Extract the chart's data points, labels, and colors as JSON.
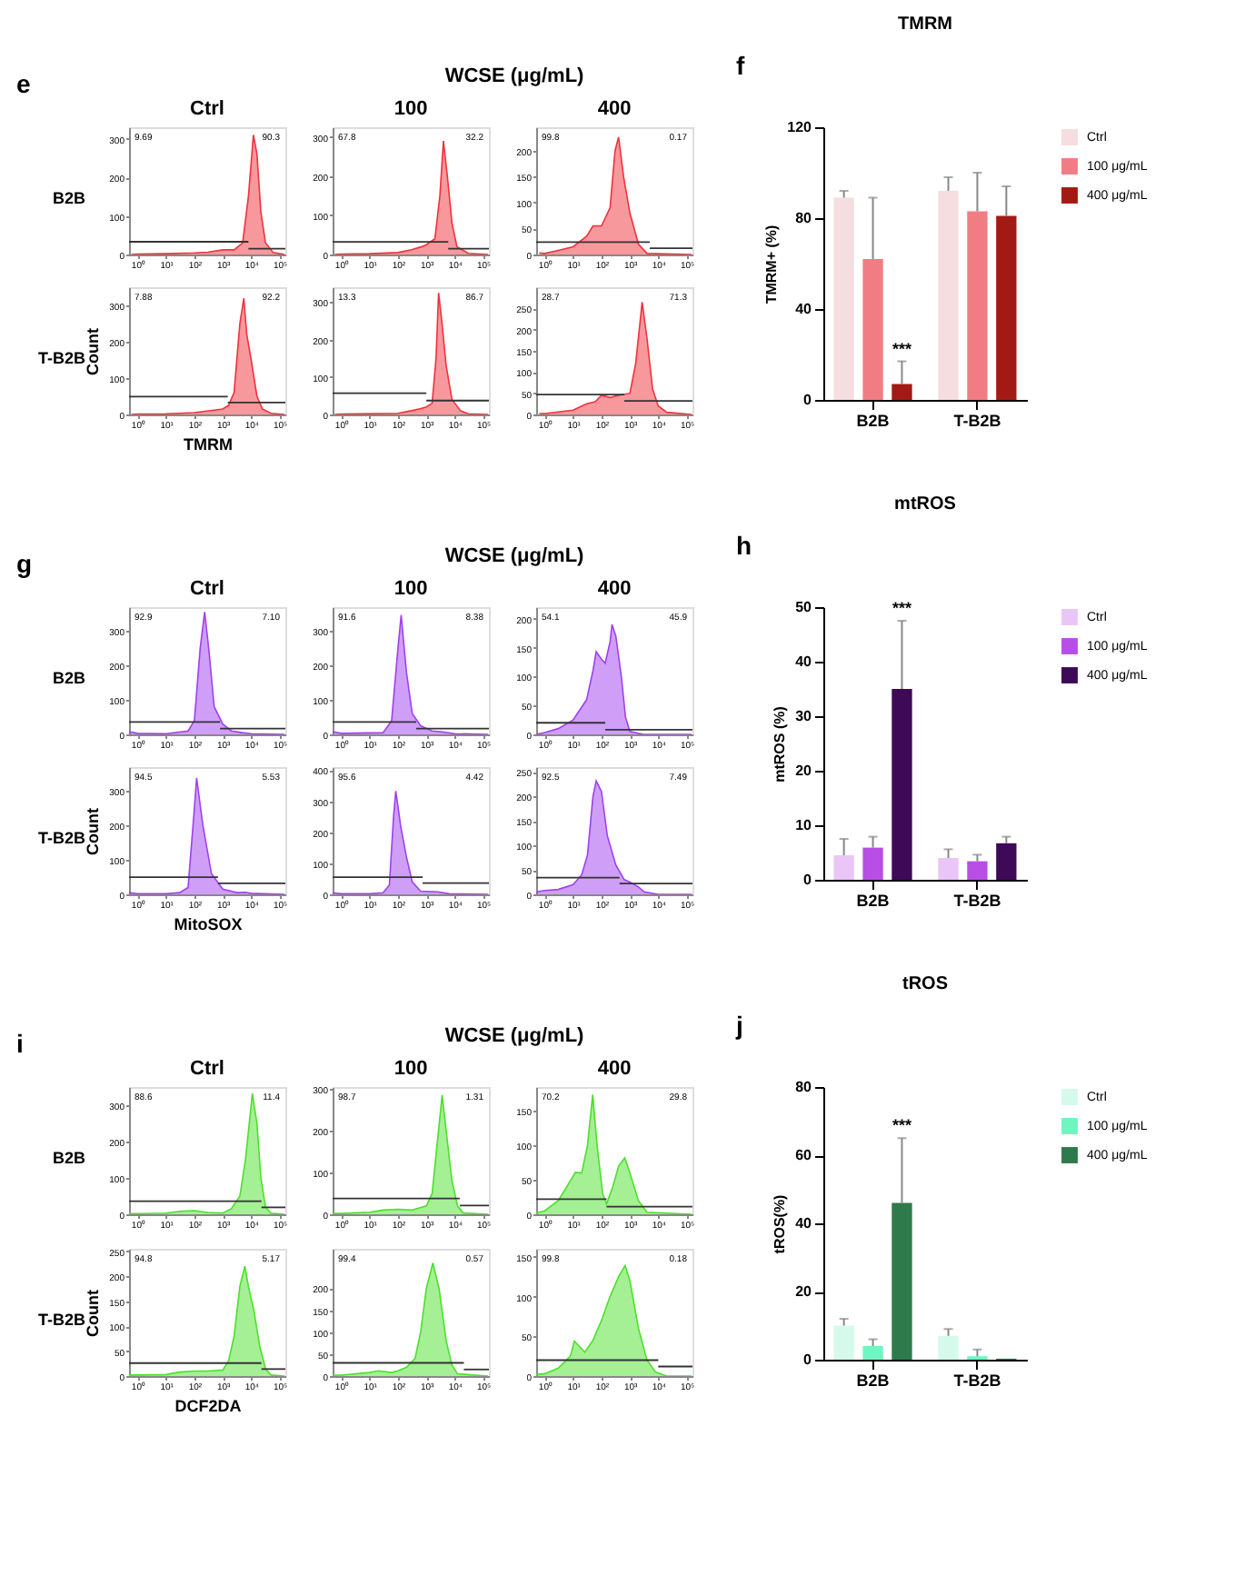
{
  "chart_data": [
    {
      "type": "area",
      "title": "Ctrl",
      "annotations": [
        "9.69",
        "90.3",
        "B2B",
        "e"
      ],
      "log": "x",
      "xlim": [
        0.5,
        160000
      ],
      "xticks": [
        {
          "value": 1,
          "label": "10⁰"
        },
        {
          "value": 10,
          "label": "10¹"
        },
        {
          "value": 100,
          "label": "10²"
        },
        {
          "value": 1000,
          "label": "10³"
        },
        {
          "value": 10000,
          "label": "10⁴"
        },
        {
          "value": 100000,
          "label": "10⁵"
        }
      ],
      "ylim": [
        0,
        330
      ],
      "yticks": [
        0,
        100,
        200,
        300
      ],
      "x": [
        0.6,
        1,
        10,
        100,
        300,
        1000,
        2500,
        5000,
        8000,
        12000,
        16000,
        22000,
        32000,
        60000,
        150000
      ],
      "series": [
        {
          "color": "#f0323c",
          "values": [
            0,
            1,
            2,
            4,
            6,
            12,
            12,
            30,
            150,
            310,
            260,
            110,
            30,
            5,
            0
          ]
        },
        {
          "type": "line",
          "color": "#333333",
          "x": [
            0.5,
            8000
          ],
          "values": [
            33,
            33
          ]
        },
        {
          "type": "line",
          "color": "#333333",
          "x": [
            8000,
            160000
          ],
          "values": [
            15,
            15
          ]
        }
      ]
    },
    {
      "type": "area",
      "title": "100",
      "subtitle": "WCSE (μg/mL)",
      "annotations": [
        "67.8",
        "32.2"
      ],
      "log": "x",
      "xlim": [
        0.5,
        160000
      ],
      "xticks": [
        {
          "value": 1,
          "label": "10⁰"
        },
        {
          "value": 10,
          "label": "10¹"
        },
        {
          "value": 100,
          "label": "10²"
        },
        {
          "value": 1000,
          "label": "10³"
        },
        {
          "value": 10000,
          "label": "10⁴"
        },
        {
          "value": 100000,
          "label": "10⁵"
        }
      ],
      "ylim": [
        0,
        325
      ],
      "yticks": [
        0,
        100,
        200,
        300
      ],
      "x": [
        0.6,
        1,
        10,
        100,
        300,
        700,
        1000,
        2000,
        3000,
        4000,
        5500,
        8000,
        12000,
        30000,
        150000
      ],
      "series": [
        {
          "color": "#f0323c",
          "values": [
            0,
            1,
            2,
            5,
            12,
            20,
            25,
            40,
            150,
            290,
            200,
            80,
            20,
            3,
            0
          ]
        },
        {
          "type": "line",
          "color": "#333333",
          "x": [
            0.5,
            5900
          ],
          "values": [
            32,
            32
          ]
        },
        {
          "type": "line",
          "color": "#333333",
          "x": [
            5900,
            160000
          ],
          "values": [
            15,
            15
          ]
        }
      ]
    },
    {
      "type": "area",
      "title": "400",
      "annotations": [
        "99.8",
        "0.17"
      ],
      "log": "x",
      "xlim": [
        0.5,
        160000
      ],
      "xticks": [
        {
          "value": 1,
          "label": "10⁰"
        },
        {
          "value": 10,
          "label": "10¹"
        },
        {
          "value": 100,
          "label": "10²"
        },
        {
          "value": 1000,
          "label": "10³"
        },
        {
          "value": 10000,
          "label": "10⁴"
        },
        {
          "value": 100000,
          "label": "10⁵"
        }
      ],
      "ylim": [
        0,
        245
      ],
      "yticks": [
        0,
        50,
        100,
        150,
        200
      ],
      "x": [
        0.65,
        1,
        3,
        10,
        30,
        50,
        100,
        200,
        300,
        400,
        600,
        1000,
        2000,
        4000,
        150000
      ],
      "series": [
        {
          "color": "#f0323c",
          "values": [
            3,
            2,
            8,
            15,
            35,
            55,
            55,
            90,
            200,
            226,
            150,
            80,
            20,
            2,
            0
          ]
        },
        {
          "type": "line",
          "color": "#333333",
          "x": [
            0.5,
            5000
          ],
          "values": [
            24,
            24
          ]
        },
        {
          "type": "line",
          "color": "#333333",
          "x": [
            5000,
            160000
          ],
          "values": [
            12,
            12
          ]
        }
      ]
    },
    {
      "type": "area",
      "xlabel": "TMRM",
      "ylabel": "Count",
      "annotations": [
        "7.88",
        "92.2",
        "T-B2B"
      ],
      "log": "x",
      "xlim": [
        0.5,
        160000
      ],
      "xticks": [
        {
          "value": 1,
          "label": "10⁰"
        },
        {
          "value": 10,
          "label": "10¹"
        },
        {
          "value": 100,
          "label": "10²"
        },
        {
          "value": 1000,
          "label": "10³"
        },
        {
          "value": 10000,
          "label": "10⁴"
        },
        {
          "value": 100000,
          "label": "10⁵"
        }
      ],
      "ylim": [
        0,
        350
      ],
      "yticks": [
        0,
        100,
        200,
        300
      ],
      "x": [
        0.6,
        1,
        10,
        100,
        1000,
        1600,
        2500,
        4000,
        5500,
        7000,
        10000,
        16000,
        25000,
        50000,
        150000
      ],
      "series": [
        {
          "color": "#f0323c",
          "values": [
            0,
            1,
            2,
            5,
            15,
            25,
            60,
            250,
            320,
            220,
            150,
            50,
            15,
            3,
            0
          ]
        },
        {
          "type": "line",
          "color": "#333333",
          "x": [
            0.5,
            1500
          ],
          "values": [
            49,
            49
          ]
        },
        {
          "type": "line",
          "color": "#333333",
          "x": [
            1500,
            160000
          ],
          "values": [
            33,
            33
          ]
        }
      ]
    },
    {
      "type": "area",
      "annotations": [
        "13.3",
        "86.7"
      ],
      "log": "x",
      "xlim": [
        0.5,
        160000
      ],
      "xticks": [
        {
          "value": 1,
          "label": "10⁰"
        },
        {
          "value": 10,
          "label": "10¹"
        },
        {
          "value": 100,
          "label": "10²"
        },
        {
          "value": 1000,
          "label": "10³"
        },
        {
          "value": 10000,
          "label": "10⁴"
        },
        {
          "value": 100000,
          "label": "10⁵"
        }
      ],
      "ylim": [
        0,
        340
      ],
      "yticks": [
        0,
        100,
        200,
        300
      ],
      "x": [
        0.6,
        1,
        100,
        300,
        600,
        1000,
        1600,
        2200,
        2700,
        3500,
        5000,
        8000,
        16000,
        30000,
        150000
      ],
      "series": [
        {
          "color": "#f0323c",
          "values": [
            0,
            1,
            3,
            10,
            15,
            20,
            30,
            150,
            325,
            250,
            130,
            40,
            10,
            2,
            0
          ]
        },
        {
          "type": "line",
          "color": "#333333",
          "x": [
            0.5,
            1000
          ],
          "values": [
            57,
            57
          ]
        },
        {
          "type": "line",
          "color": "#333333",
          "x": [
            1000,
            160000
          ],
          "values": [
            37,
            37
          ]
        }
      ]
    },
    {
      "type": "area",
      "annotations": [
        "28.7",
        "71.3"
      ],
      "log": "x",
      "xlim": [
        0.5,
        160000
      ],
      "xticks": [
        {
          "value": 1,
          "label": "10⁰"
        },
        {
          "value": 10,
          "label": "10¹"
        },
        {
          "value": 100,
          "label": "10²"
        },
        {
          "value": 1000,
          "label": "10³"
        },
        {
          "value": 10000,
          "label": "10⁴"
        },
        {
          "value": 100000,
          "label": "10⁵"
        }
      ],
      "ylim": [
        0,
        300
      ],
      "yticks": [
        0,
        50,
        100,
        150,
        200,
        250
      ],
      "x": [
        0.65,
        1,
        10,
        30,
        60,
        100,
        200,
        400,
        1000,
        1600,
        2700,
        4000,
        6300,
        10000,
        20000,
        150000
      ],
      "series": [
        {
          "color": "#f0323c",
          "values": [
            2,
            2,
            10,
            25,
            30,
            45,
            40,
            45,
            50,
            120,
            265,
            180,
            60,
            20,
            5,
            0
          ]
        },
        {
          "type": "line",
          "color": "#333333",
          "x": [
            0.5,
            630
          ],
          "values": [
            47,
            47
          ]
        },
        {
          "type": "line",
          "color": "#333333",
          "x": [
            630,
            160000
          ],
          "values": [
            32,
            32
          ]
        }
      ]
    },
    {
      "type": "bar",
      "title": "TMRM",
      "ylabel": "TMRM+ (%)",
      "categories": [
        "B2B",
        "T-B2B"
      ],
      "ylim": [
        0,
        120
      ],
      "yticks": [
        0,
        40,
        80,
        120
      ],
      "legend": "right",
      "annotations": [
        "f",
        "***"
      ],
      "series": [
        {
          "name": "Ctrl",
          "color": "#f5dde0",
          "values": [
            89,
            92
          ],
          "errors": [
            [
              89,
              92
            ],
            [
              92,
              98
            ]
          ]
        },
        {
          "name": "100 μg/mL",
          "color": "#f27c84",
          "values": [
            62,
            83
          ],
          "errors": [
            [
              62,
              89
            ],
            [
              83,
              100
            ]
          ]
        },
        {
          "name": "400 μg/mL",
          "color": "#a31a14",
          "values": [
            7,
            81
          ],
          "errors": [
            [
              7,
              17
            ],
            [
              81,
              94
            ]
          ]
        }
      ]
    },
    {
      "type": "area",
      "title": "Ctrl",
      "annotations": [
        "92.9",
        "7.10",
        "B2B",
        "g"
      ],
      "log": "x",
      "xlim": [
        0.5,
        160000
      ],
      "xticks": [
        {
          "value": 1,
          "label": "10⁰"
        },
        {
          "value": 10,
          "label": "10¹"
        },
        {
          "value": 100,
          "label": "10²"
        },
        {
          "value": 1000,
          "label": "10³"
        },
        {
          "value": 10000,
          "label": "10⁴"
        },
        {
          "value": 100000,
          "label": "10⁵"
        }
      ],
      "ylim": [
        0,
        370
      ],
      "yticks": [
        0,
        100,
        200,
        300
      ],
      "x": [
        0.5,
        1,
        10,
        60,
        100,
        160,
        230,
        320,
        500,
        1000,
        2000,
        5000,
        10000,
        150000
      ],
      "series": [
        {
          "color": "#a040f0",
          "values": [
            8,
            3,
            2,
            10,
            40,
            250,
            356,
            250,
            80,
            30,
            10,
            5,
            2,
            0
          ]
        },
        {
          "type": "line",
          "color": "#333333",
          "x": [
            0.5,
            800
          ],
          "values": [
            36,
            36
          ]
        },
        {
          "type": "line",
          "color": "#333333",
          "x": [
            800,
            160000
          ],
          "values": [
            17,
            17
          ]
        }
      ]
    },
    {
      "type": "area",
      "title": "100",
      "subtitle": "WCSE (μg/mL)",
      "annotations": [
        "91.6",
        "8.38"
      ],
      "log": "x",
      "xlim": [
        0.5,
        160000
      ],
      "xticks": [
        {
          "value": 1,
          "label": "10⁰"
        },
        {
          "value": 10,
          "label": "10¹"
        },
        {
          "value": 100,
          "label": "10²"
        },
        {
          "value": 1000,
          "label": "10³"
        },
        {
          "value": 10000,
          "label": "10⁴"
        },
        {
          "value": 100000,
          "label": "10⁵"
        }
      ],
      "ylim": [
        0,
        370
      ],
      "yticks": [
        0,
        100,
        200,
        300
      ],
      "x": [
        0.5,
        1,
        30,
        60,
        100,
        130,
        200,
        320,
        630,
        1600,
        3200,
        10000,
        150000
      ],
      "series": [
        {
          "color": "#a040f0",
          "values": [
            8,
            3,
            5,
            40,
            250,
            347,
            180,
            60,
            25,
            10,
            8,
            2,
            0
          ]
        },
        {
          "type": "line",
          "color": "#333333",
          "x": [
            0.5,
            440
          ],
          "values": [
            36,
            36
          ]
        },
        {
          "type": "line",
          "color": "#333333",
          "x": [
            440,
            160000
          ],
          "values": [
            17,
            17
          ]
        }
      ]
    },
    {
      "type": "area",
      "title": "400",
      "annotations": [
        "54.1",
        "45.9"
      ],
      "log": "x",
      "xlim": [
        0.5,
        160000
      ],
      "xticks": [
        {
          "value": 1,
          "label": "10⁰"
        },
        {
          "value": 10,
          "label": "10¹"
        },
        {
          "value": 100,
          "label": "10²"
        },
        {
          "value": 1000,
          "label": "10³"
        },
        {
          "value": 10000,
          "label": "10⁴"
        },
        {
          "value": 100000,
          "label": "10⁵"
        }
      ],
      "ylim": [
        0,
        220
      ],
      "yticks": [
        0,
        50,
        100,
        150,
        200
      ],
      "x": [
        0.5,
        1,
        3,
        10,
        16,
        30,
        50,
        65,
        100,
        135,
        200,
        235,
        320,
        500,
        700,
        1000,
        3000,
        150000
      ],
      "series": [
        {
          "color": "#a040f0",
          "values": [
            0,
            3,
            10,
            25,
            40,
            60,
            110,
            143,
            130,
            123,
            160,
            190,
            170,
            100,
            30,
            5,
            0,
            0
          ]
        },
        {
          "type": "line",
          "color": "#333333",
          "x": [
            0.5,
            135
          ],
          "values": [
            20,
            20
          ]
        },
        {
          "type": "line",
          "color": "#333333",
          "x": [
            135,
            160000
          ],
          "values": [
            8,
            8
          ]
        }
      ]
    },
    {
      "type": "area",
      "xlabel": "MitoSOX",
      "ylabel": "Count",
      "annotations": [
        "94.5",
        "5.53",
        "T-B2B"
      ],
      "log": "x",
      "xlim": [
        0.5,
        160000
      ],
      "xticks": [
        {
          "value": 1,
          "label": "10⁰"
        },
        {
          "value": 10,
          "label": "10¹"
        },
        {
          "value": 100,
          "label": "10²"
        },
        {
          "value": 1000,
          "label": "10³"
        },
        {
          "value": 10000,
          "label": "10⁴"
        },
        {
          "value": 100000,
          "label": "10⁵"
        }
      ],
      "ylim": [
        0,
        370
      ],
      "yticks": [
        0,
        100,
        200,
        300
      ],
      "x": [
        0.5,
        1,
        10,
        30,
        60,
        100,
        120,
        200,
        400,
        1000,
        3200,
        6300,
        10000,
        150000
      ],
      "series": [
        {
          "color": "#a040f0",
          "values": [
            5,
            2,
            2,
            5,
            20,
            250,
            339,
            200,
            60,
            15,
            5,
            6,
            3,
            0
          ]
        },
        {
          "type": "line",
          "color": "#333333",
          "x": [
            0.5,
            680
          ],
          "values": [
            50,
            50
          ]
        },
        {
          "type": "line",
          "color": "#333333",
          "x": [
            680,
            160000
          ],
          "values": [
            32,
            32
          ]
        }
      ]
    },
    {
      "type": "area",
      "annotations": [
        "95.6",
        "4.42"
      ],
      "log": "x",
      "xlim": [
        0.5,
        160000
      ],
      "xticks": [
        {
          "value": 1,
          "label": "10⁰"
        },
        {
          "value": 10,
          "label": "10¹"
        },
        {
          "value": 100,
          "label": "10²"
        },
        {
          "value": 1000,
          "label": "10³"
        },
        {
          "value": 10000,
          "label": "10⁴"
        },
        {
          "value": 100000,
          "label": "10⁵"
        }
      ],
      "ylim": [
        0,
        410
      ],
      "yticks": [
        0,
        100,
        200,
        300,
        400
      ],
      "x": [
        0.5,
        1,
        10,
        30,
        50,
        70,
        84,
        125,
        200,
        320,
        630,
        2500,
        6300,
        150000
      ],
      "series": [
        {
          "color": "#a040f0",
          "values": [
            5,
            2,
            2,
            5,
            30,
            250,
            333,
            220,
            120,
            40,
            10,
            8,
            2,
            0
          ]
        },
        {
          "type": "line",
          "color": "#333333",
          "x": [
            0.5,
            740
          ],
          "values": [
            55,
            55
          ]
        },
        {
          "type": "line",
          "color": "#333333",
          "x": [
            740,
            160000
          ],
          "values": [
            36,
            36
          ]
        }
      ]
    },
    {
      "type": "area",
      "annotations": [
        "92.5",
        "7.49"
      ],
      "log": "x",
      "xlim": [
        0.5,
        160000
      ],
      "xticks": [
        {
          "value": 1,
          "label": "10⁰"
        },
        {
          "value": 10,
          "label": "10¹"
        },
        {
          "value": 100,
          "label": "10²"
        },
        {
          "value": 1000,
          "label": "10³"
        },
        {
          "value": 10000,
          "label": "10⁴"
        },
        {
          "value": 100000,
          "label": "10⁵"
        }
      ],
      "ylim": [
        0,
        260
      ],
      "yticks": [
        0,
        50,
        100,
        150,
        200,
        250
      ],
      "x": [
        0.5,
        1,
        3,
        10,
        20,
        32,
        50,
        65,
        100,
        160,
        320,
        630,
        1000,
        2000,
        3200,
        10000,
        150000
      ],
      "series": [
        {
          "color": "#a040f0",
          "values": [
            5,
            8,
            10,
            20,
            40,
            80,
            200,
            232,
            210,
            120,
            60,
            30,
            25,
            15,
            5,
            0,
            0
          ]
        },
        {
          "type": "line",
          "color": "#333333",
          "x": [
            0.5,
            430
          ],
          "values": [
            34,
            34
          ]
        },
        {
          "type": "line",
          "color": "#333333",
          "x": [
            430,
            160000
          ],
          "values": [
            22,
            22
          ]
        }
      ]
    },
    {
      "type": "bar",
      "title": "mtROS",
      "ylabel": "mtROS (%)",
      "categories": [
        "B2B",
        "T-B2B"
      ],
      "ylim": [
        0,
        50
      ],
      "yticks": [
        0,
        10,
        20,
        30,
        40,
        50
      ],
      "legend": "right",
      "annotations": [
        "h",
        "***"
      ],
      "series": [
        {
          "name": "Ctrl",
          "color": "#e9c6f7",
          "values": [
            4.5,
            4.0
          ],
          "errors": [
            [
              4.5,
              7.5
            ],
            [
              4.0,
              5.6
            ]
          ]
        },
        {
          "name": "100 μg/mL",
          "color": "#b94ee6",
          "values": [
            5.9,
            3.4
          ],
          "errors": [
            [
              5.9,
              7.9
            ],
            [
              3.4,
              4.6
            ]
          ]
        },
        {
          "name": "400 μg/mL",
          "color": "#3e0a57",
          "values": [
            35,
            6.7
          ],
          "errors": [
            [
              35,
              47.5
            ],
            [
              6.7,
              7.9
            ]
          ]
        }
      ]
    },
    {
      "type": "area",
      "title": "Ctrl",
      "annotations": [
        "88.6",
        "11.4",
        "B2B",
        "i"
      ],
      "log": "x",
      "xlim": [
        0.5,
        160000
      ],
      "xticks": [
        {
          "value": 1,
          "label": "10⁰"
        },
        {
          "value": 10,
          "label": "10¹"
        },
        {
          "value": 100,
          "label": "10²"
        },
        {
          "value": 1000,
          "label": "10³"
        },
        {
          "value": 10000,
          "label": "10⁴"
        },
        {
          "value": 100000,
          "label": "10⁵"
        }
      ],
      "ylim": [
        0,
        350
      ],
      "yticks": [
        0,
        100,
        200,
        300
      ],
      "x": [
        0.5,
        1,
        10,
        30,
        100,
        300,
        1000,
        2000,
        4000,
        6300,
        11000,
        16000,
        22000,
        32000,
        50000,
        150000
      ],
      "series": [
        {
          "color": "#4ce02c",
          "values": [
            2,
            2,
            3,
            8,
            10,
            5,
            3,
            15,
            50,
            150,
            332,
            250,
            100,
            20,
            3,
            0
          ]
        },
        {
          "type": "line",
          "color": "#333333",
          "x": [
            0.5,
            23000
          ],
          "values": [
            36,
            36
          ]
        },
        {
          "type": "line",
          "color": "#333333",
          "x": [
            23000,
            160000
          ],
          "values": [
            19,
            19
          ]
        }
      ]
    },
    {
      "type": "area",
      "title": "100",
      "subtitle": "WCSE (μg/mL)",
      "annotations": [
        "98.7",
        "1.31"
      ],
      "log": "x",
      "xlim": [
        0.5,
        160000
      ],
      "xticks": [
        {
          "value": 1,
          "label": "10⁰"
        },
        {
          "value": 10,
          "label": "10¹"
        },
        {
          "value": 100,
          "label": "10²"
        },
        {
          "value": 1000,
          "label": "10³"
        },
        {
          "value": 10000,
          "label": "10⁴"
        },
        {
          "value": 100000,
          "label": "10⁵"
        }
      ],
      "ylim": [
        0,
        305
      ],
      "yticks": [
        0,
        100,
        200,
        300
      ],
      "x": [
        0.5,
        1,
        10,
        30,
        100,
        300,
        1000,
        1600,
        2500,
        3600,
        5000,
        8000,
        12600,
        20000,
        150000
      ],
      "series": [
        {
          "color": "#4ce02c",
          "values": [
            2,
            2,
            5,
            10,
            12,
            10,
            20,
            50,
            180,
            286,
            200,
            80,
            20,
            3,
            0
          ]
        },
        {
          "type": "line",
          "color": "#333333",
          "x": [
            0.5,
            15000
          ],
          "values": [
            38,
            38
          ]
        },
        {
          "type": "line",
          "color": "#333333",
          "x": [
            15000,
            160000
          ],
          "values": [
            21,
            21
          ]
        }
      ]
    },
    {
      "type": "area",
      "title": "400",
      "annotations": [
        "70.2",
        "29.8"
      ],
      "log": "x",
      "xlim": [
        0.5,
        160000
      ],
      "xticks": [
        {
          "value": 1,
          "label": "10⁰"
        },
        {
          "value": 10,
          "label": "10¹"
        },
        {
          "value": 100,
          "label": "10²"
        },
        {
          "value": 1000,
          "label": "10³"
        },
        {
          "value": 10000,
          "label": "10⁴"
        },
        {
          "value": 100000,
          "label": "10⁵"
        }
      ],
      "ylim": [
        0,
        185
      ],
      "yticks": [
        0,
        50,
        100,
        150
      ],
      "x": [
        0.5,
        1,
        3,
        6,
        12,
        20,
        32,
        49,
        70,
        110,
        150,
        250,
        400,
        660,
        1000,
        2000,
        4000,
        150000
      ],
      "series": [
        {
          "color": "#4ce02c",
          "values": [
            2,
            5,
            20,
            40,
            61,
            60,
            100,
            174,
            100,
            30,
            15,
            40,
            70,
            82,
            60,
            20,
            3,
            0
          ]
        },
        {
          "type": "line",
          "color": "#333333",
          "x": [
            0.5,
            150
          ],
          "values": [
            22,
            22
          ]
        },
        {
          "type": "line",
          "color": "#333333",
          "x": [
            150,
            160000
          ],
          "values": [
            11,
            11
          ]
        }
      ]
    },
    {
      "type": "area",
      "xlabel": "DCF2DA",
      "ylabel": "Count",
      "annotations": [
        "94.8",
        "5.17",
        "T-B2B"
      ],
      "log": "x",
      "xlim": [
        0.5,
        160000
      ],
      "xticks": [
        {
          "value": 1,
          "label": "10⁰"
        },
        {
          "value": 10,
          "label": "10¹"
        },
        {
          "value": 100,
          "label": "10²"
        },
        {
          "value": 1000,
          "label": "10³"
        },
        {
          "value": 10000,
          "label": "10⁴"
        },
        {
          "value": 100000,
          "label": "10⁵"
        }
      ],
      "ylim": [
        0,
        255
      ],
      "yticks": [
        0,
        50,
        100,
        150,
        200,
        250
      ],
      "x": [
        0.5,
        1,
        10,
        30,
        100,
        300,
        1000,
        1600,
        2500,
        4000,
        6000,
        8000,
        12600,
        20000,
        32000,
        50000,
        150000
      ],
      "series": [
        {
          "color": "#4ce02c",
          "values": [
            2,
            2,
            3,
            8,
            10,
            10,
            12,
            30,
            80,
            180,
            220,
            180,
            130,
            60,
            15,
            2,
            0
          ]
        },
        {
          "type": "line",
          "color": "#333333",
          "x": [
            0.5,
            23000
          ],
          "values": [
            26,
            26
          ]
        },
        {
          "type": "line",
          "color": "#333333",
          "x": [
            23000,
            160000
          ],
          "values": [
            14,
            14
          ]
        }
      ]
    },
    {
      "type": "area",
      "annotations": [
        "99.4",
        "0.57"
      ],
      "log": "x",
      "xlim": [
        0.5,
        160000
      ],
      "xticks": [
        {
          "value": 1,
          "label": "10⁰"
        },
        {
          "value": 10,
          "label": "10¹"
        },
        {
          "value": 100,
          "label": "10²"
        },
        {
          "value": 1000,
          "label": "10³"
        },
        {
          "value": 10000,
          "label": "10⁴"
        },
        {
          "value": 100000,
          "label": "10⁵"
        }
      ],
      "ylim": [
        0,
        290
      ],
      "yticks": [
        0,
        50,
        100,
        150,
        200
      ],
      "x": [
        0.5,
        1,
        10,
        20,
        60,
        100,
        200,
        400,
        630,
        1000,
        1700,
        2800,
        5000,
        8000,
        12600,
        150000
      ],
      "series": [
        {
          "color": "#4ce02c",
          "values": [
            2,
            2,
            8,
            12,
            8,
            12,
            20,
            40,
            100,
            200,
            258,
            200,
            80,
            25,
            5,
            0
          ]
        },
        {
          "type": "line",
          "color": "#333333",
          "x": [
            0.5,
            21000
          ],
          "values": [
            30,
            30
          ]
        },
        {
          "type": "line",
          "color": "#333333",
          "x": [
            21000,
            160000
          ],
          "values": [
            15,
            15
          ]
        }
      ]
    },
    {
      "type": "area",
      "annotations": [
        "99.8",
        "0.18"
      ],
      "log": "x",
      "xlim": [
        0.5,
        160000
      ],
      "xticks": [
        {
          "value": 1,
          "label": "10⁰"
        },
        {
          "value": 10,
          "label": "10¹"
        },
        {
          "value": 100,
          "label": "10²"
        },
        {
          "value": 1000,
          "label": "10³"
        },
        {
          "value": 10000,
          "label": "10⁴"
        },
        {
          "value": 100000,
          "label": "10⁵"
        }
      ],
      "ylim": [
        0,
        160
      ],
      "yticks": [
        0,
        50,
        100,
        150
      ],
      "x": [
        0.5,
        1,
        3,
        8,
        11,
        16,
        26,
        50,
        100,
        200,
        400,
        680,
        1000,
        2000,
        4000,
        8000,
        20000,
        150000
      ],
      "series": [
        {
          "color": "#4ce02c",
          "values": [
            2,
            3,
            10,
            25,
            44,
            38,
            30,
            45,
            70,
            100,
            125,
            139,
            120,
            60,
            20,
            5,
            0,
            0
          ]
        },
        {
          "type": "line",
          "color": "#333333",
          "x": [
            0.5,
            10000
          ],
          "values": [
            20,
            20
          ]
        },
        {
          "type": "line",
          "color": "#333333",
          "x": [
            10000,
            160000
          ],
          "values": [
            12,
            12
          ]
        }
      ]
    },
    {
      "type": "bar",
      "title": "tROS",
      "ylabel": "tROS(%)",
      "categories": [
        "B2B",
        "T-B2B"
      ],
      "ylim": [
        0,
        80
      ],
      "yticks": [
        0,
        20,
        40,
        60,
        80
      ],
      "legend": "right",
      "annotations": [
        "j",
        "***"
      ],
      "series": [
        {
          "name": "Ctrl",
          "color": "#d5faeb",
          "values": [
            10,
            7
          ],
          "errors": [
            [
              10,
              12
            ],
            [
              7,
              9
            ]
          ]
        },
        {
          "name": "100 μg/mL",
          "color": "#6ff5c0",
          "values": [
            4,
            1
          ],
          "errors": [
            [
              4,
              6
            ],
            [
              1,
              3
            ]
          ]
        },
        {
          "name": "400 μg/mL",
          "color": "#2e7a4a",
          "values": [
            46,
            0.3
          ],
          "errors": [
            [
              46,
              65
            ],
            null
          ]
        }
      ]
    }
  ]
}
